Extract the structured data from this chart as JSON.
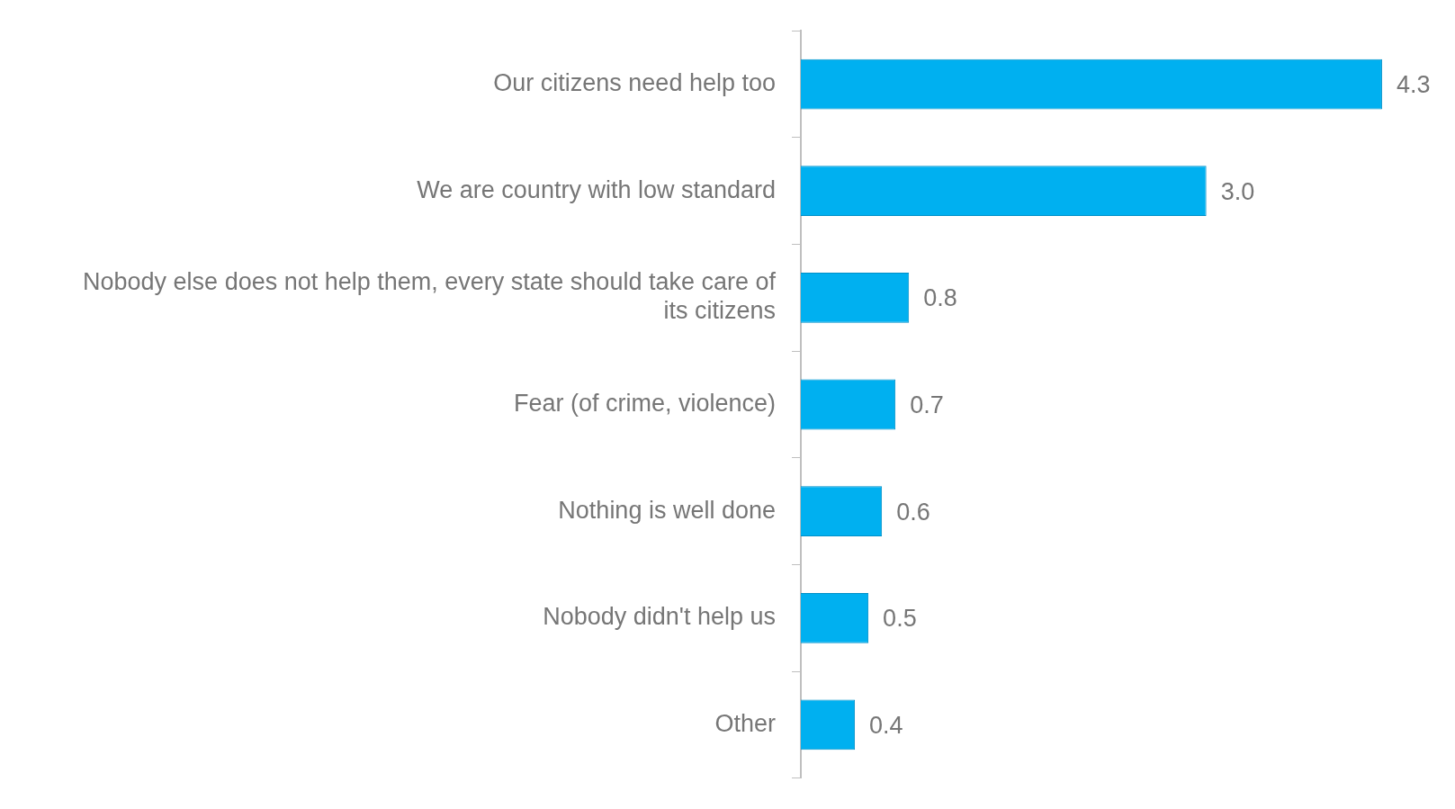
{
  "chart_data": {
    "type": "bar",
    "orientation": "horizontal",
    "tick_labels": "y",
    "categories": [
      "Our citizens need help too",
      "We are country with low standard",
      "Nobody else does not help them, every state should take care of its citizens",
      "Fear (of crime, violence)",
      "Nothing is well done",
      "Nobody didn't help us",
      "Other"
    ],
    "values": [
      4.3,
      3.0,
      0.8,
      0.7,
      0.6,
      0.5,
      0.4
    ],
    "value_labels": [
      "4.3",
      "3.0",
      "0.8",
      "0.7",
      "0.6",
      "0.5",
      "0.4"
    ],
    "color": "#00b0f0",
    "legend": false
  }
}
